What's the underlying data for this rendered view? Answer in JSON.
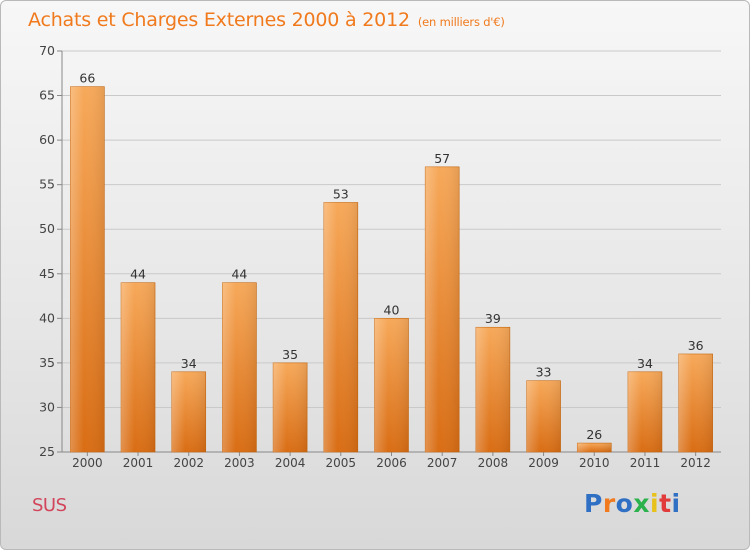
{
  "title": "Achats et Charges Externes 2000 à 2012",
  "subtitle": "(en milliers d'€)",
  "commune": "SUS",
  "logo": {
    "text": "Proxiti",
    "colors": [
      "#2f6fc4",
      "#f07a1d",
      "#2f6fc4",
      "#2bb24c",
      "#e8c21b",
      "#e23b3b",
      "#2f6fc4"
    ]
  },
  "chart_data": {
    "type": "bar",
    "categories": [
      "2000",
      "2001",
      "2002",
      "2003",
      "2004",
      "2005",
      "2006",
      "2007",
      "2008",
      "2009",
      "2010",
      "2011",
      "2012"
    ],
    "values": [
      66,
      44,
      34,
      44,
      35,
      53,
      40,
      57,
      39,
      33,
      26,
      34,
      36
    ],
    "ylim": [
      25,
      70
    ],
    "yticks": [
      25,
      30,
      35,
      40,
      45,
      50,
      55,
      60,
      65,
      70
    ],
    "grid": true,
    "bar_color": "#f07a1d"
  }
}
